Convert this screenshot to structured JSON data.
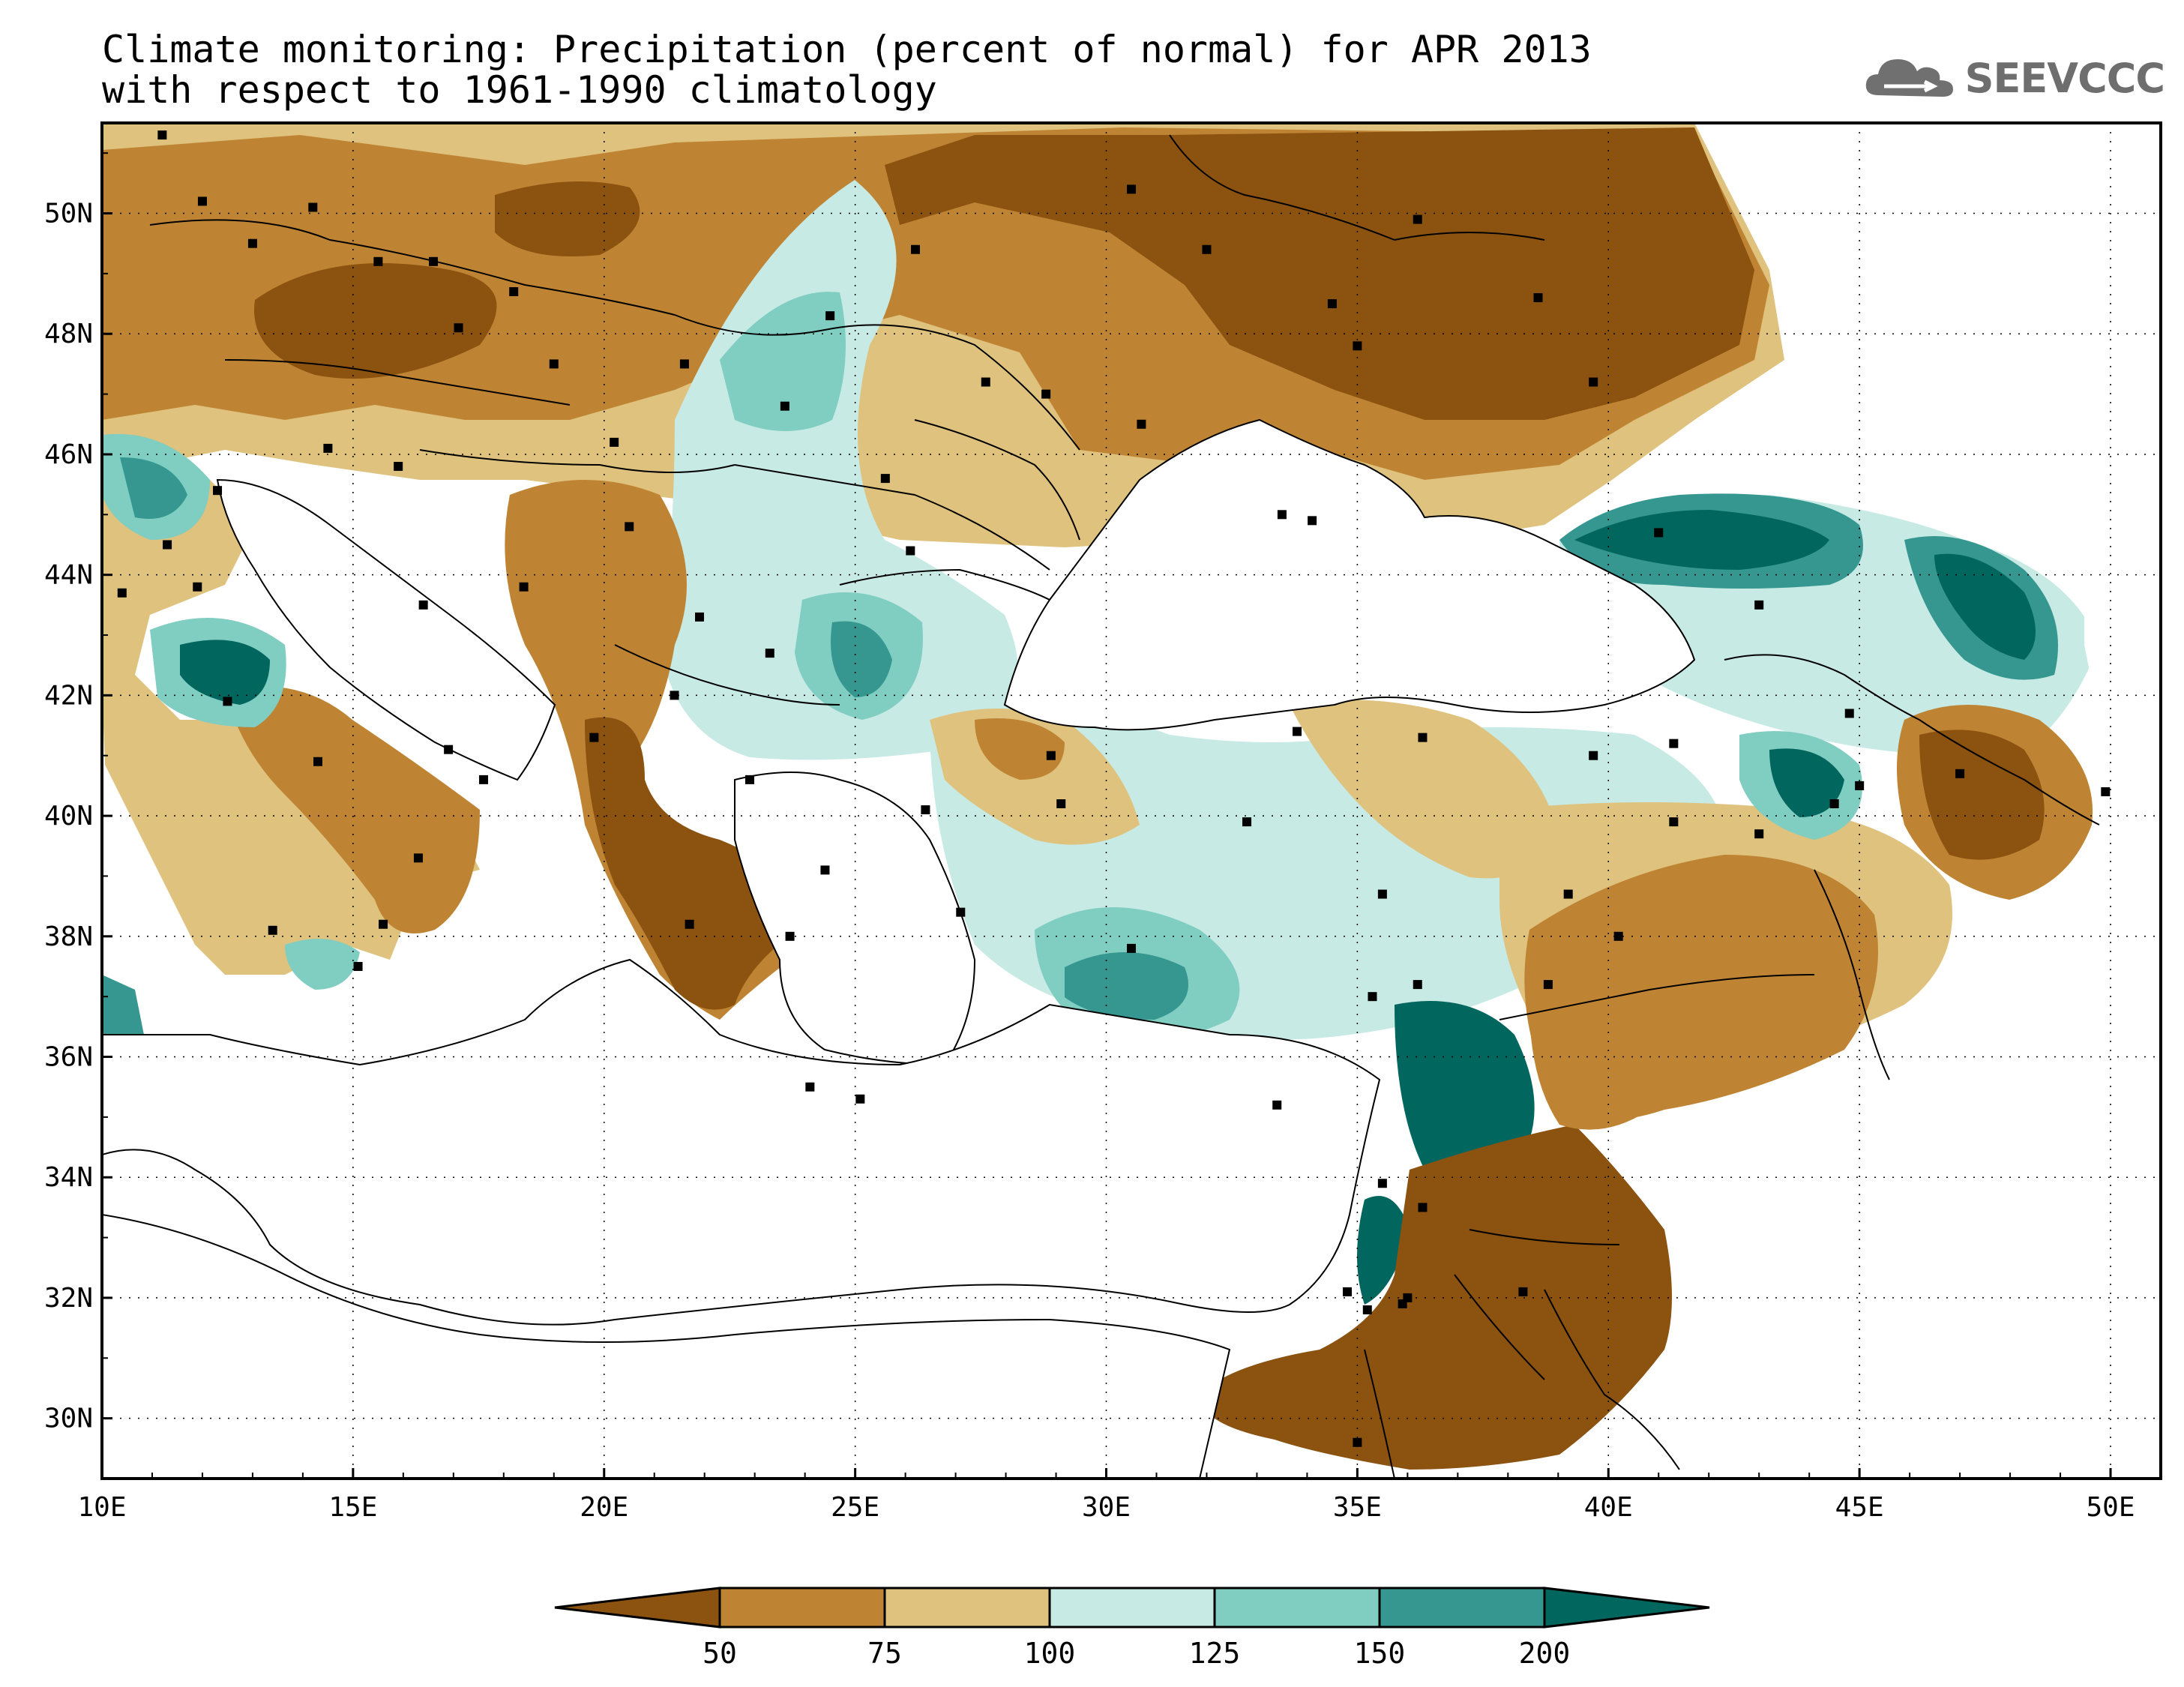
{
  "title": {
    "line1": "Climate monitoring: Precipitation (percent of normal) for APR 2013",
    "line2": "with respect to 1961-1990 climatology"
  },
  "logo": {
    "text": "SEEVCCC",
    "icon": "cloud-logo-icon"
  },
  "map": {
    "lon_range": [
      10,
      51
    ],
    "lat_range": [
      29,
      51.5
    ],
    "x_ticks": [
      "10E",
      "15E",
      "20E",
      "25E",
      "30E",
      "35E",
      "40E",
      "45E",
      "50E"
    ],
    "x_tick_values": [
      10,
      15,
      20,
      25,
      30,
      35,
      40,
      45,
      50
    ],
    "y_ticks": [
      "30N",
      "32N",
      "34N",
      "36N",
      "38N",
      "40N",
      "42N",
      "44N",
      "46N",
      "48N",
      "50N"
    ],
    "y_tick_values": [
      30,
      32,
      34,
      36,
      38,
      40,
      42,
      44,
      46,
      48,
      50
    ],
    "gridlines": "dotted"
  },
  "colorbar": {
    "levels": [
      "50",
      "75",
      "100",
      "125",
      "150",
      "200"
    ],
    "colors": [
      "#8b5210",
      "#bf8433",
      "#dfc27d",
      "#c7eae5",
      "#80cdc1",
      "#35978f",
      "#01665e"
    ],
    "extend": "both"
  },
  "colors": {
    "lt50": "#8b5210",
    "p50_75": "#bf8433",
    "p75_100": "#dfc27d",
    "p100_125": "#c7eae5",
    "p125_150": "#80cdc1",
    "p150_200": "#35978f",
    "gt200": "#01665e"
  }
}
